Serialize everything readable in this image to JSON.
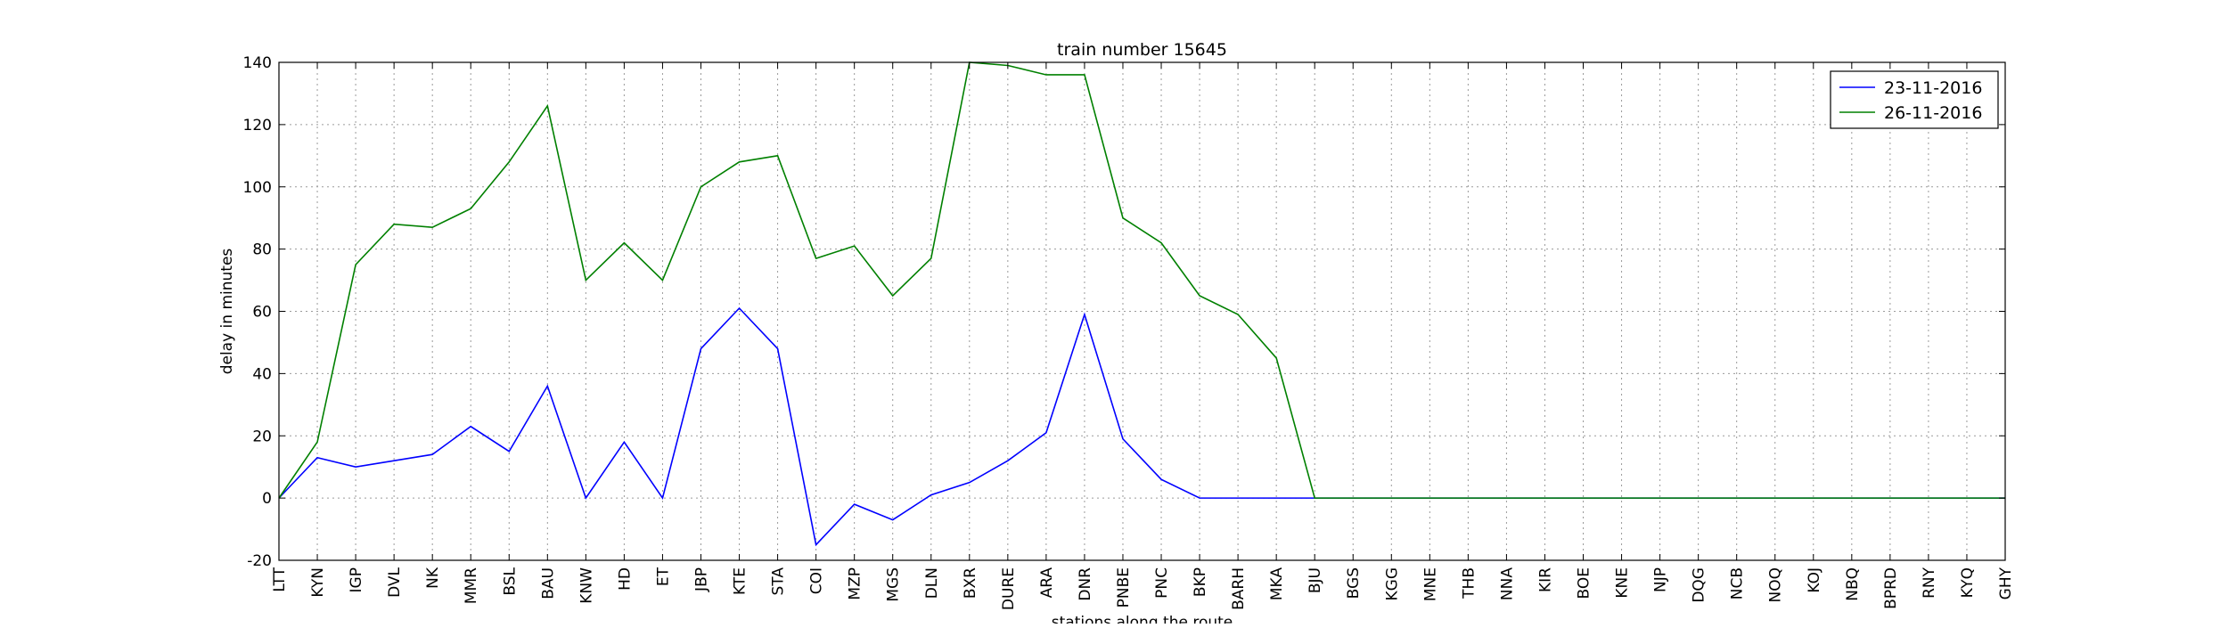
{
  "chart_data": {
    "type": "line",
    "title": "train number 15645",
    "xlabel": "stations along the route",
    "ylabel": "delay in minutes",
    "ylim": [
      -20,
      140
    ],
    "yticks": [
      -20,
      0,
      20,
      40,
      60,
      80,
      100,
      120,
      140
    ],
    "grid": true,
    "legend_position": "top-right",
    "categories": [
      "LTT",
      "KYN",
      "IGP",
      "DVL",
      "NK",
      "MMR",
      "BSL",
      "BAU",
      "KNW",
      "HD",
      "ET",
      "JBP",
      "KTE",
      "STA",
      "COI",
      "MZP",
      "MGS",
      "DLN",
      "BXR",
      "DURE",
      "ARA",
      "DNR",
      "PNBE",
      "PNC",
      "BKP",
      "BARH",
      "MKA",
      "BJU",
      "BGS",
      "KGG",
      "MNE",
      "THB",
      "NNA",
      "KIR",
      "BOE",
      "KNE",
      "NJP",
      "DQG",
      "NCB",
      "NOQ",
      "KOJ",
      "NBQ",
      "BPRD",
      "RNY",
      "KYQ",
      "GHY"
    ],
    "series": [
      {
        "name": "23-11-2016",
        "color": "#0000ff",
        "values": [
          0,
          13,
          10,
          12,
          14,
          23,
          15,
          36,
          0,
          18,
          0,
          48,
          61,
          48,
          -15,
          -2,
          -7,
          1,
          5,
          12,
          21,
          59,
          19,
          6,
          0,
          0,
          0,
          0,
          0,
          0,
          0,
          0,
          0,
          0,
          0,
          0,
          0,
          0,
          0,
          0,
          0,
          0,
          0,
          0,
          0,
          0
        ]
      },
      {
        "name": "26-11-2016",
        "color": "#008000",
        "values": [
          0,
          18,
          75,
          88,
          87,
          93,
          108,
          126,
          70,
          82,
          70,
          100,
          108,
          110,
          77,
          81,
          65,
          77,
          140,
          139,
          136,
          136,
          90,
          82,
          65,
          59,
          45,
          0,
          0,
          0,
          0,
          0,
          0,
          0,
          0,
          0,
          0,
          0,
          0,
          0,
          0,
          0,
          0,
          0,
          0,
          0
        ]
      }
    ]
  }
}
